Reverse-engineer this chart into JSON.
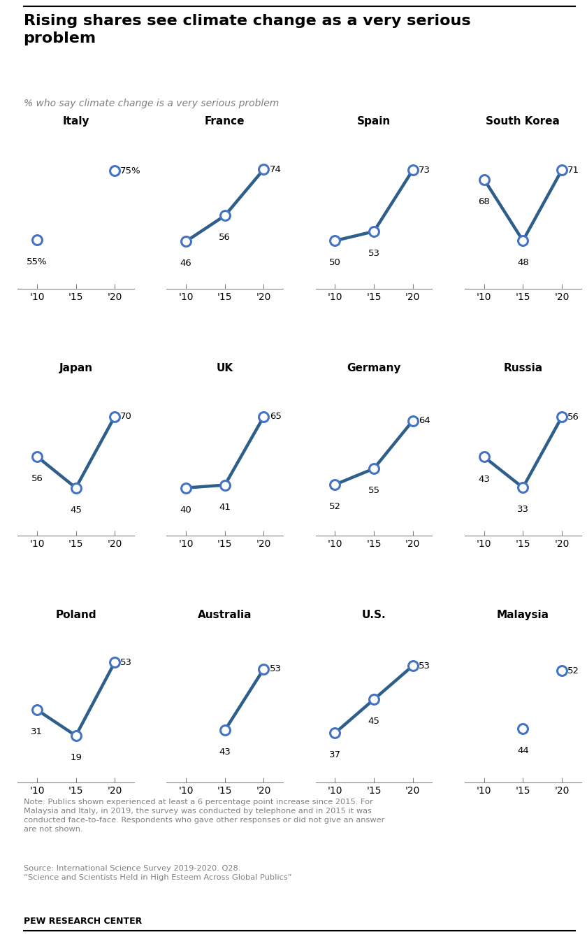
{
  "title": "Rising shares see climate change as a very serious\nproblem",
  "subtitle": "% who say climate change is a very serious problem",
  "note": "Note: Publics shown experienced at least a 6 percentage point increase since 2015. For\nMalaysia and Italy, in 2019, the survey was conducted by telephone and in 2015 it was\nconducted face-to-face. Respondents who gave other responses or did not give an answer\nare not shown.",
  "source": "Source: International Science Survey 2019-2020. Q28.\n“Science and Scientists Held in High Esteem Across Global Publics”",
  "branding": "PEW RESEARCH CENTER",
  "line_color": "#2e5f8a",
  "dot_edgecolor": "#4472c4",
  "text_color": "#808080",
  "countries": [
    {
      "name": "Italy",
      "v10": 55,
      "v15": null,
      "v20": 75,
      "label10": "55%",
      "label15": null,
      "label20": "75%",
      "connected": false
    },
    {
      "name": "France",
      "v10": 46,
      "v15": 56,
      "v20": 74,
      "label10": "46",
      "label15": "56",
      "label20": "74",
      "connected": true
    },
    {
      "name": "Spain",
      "v10": 50,
      "v15": 53,
      "v20": 73,
      "label10": "50",
      "label15": "53",
      "label20": "73",
      "connected": true
    },
    {
      "name": "South Korea",
      "v10": 68,
      "v15": 48,
      "v20": 71,
      "label10": "68",
      "label15": "48",
      "label20": "71",
      "connected": true
    },
    {
      "name": "Japan",
      "v10": 56,
      "v15": 45,
      "v20": 70,
      "label10": "56",
      "label15": "45",
      "label20": "70",
      "connected": true
    },
    {
      "name": "UK",
      "v10": 40,
      "v15": 41,
      "v20": 65,
      "label10": "40",
      "label15": "41",
      "label20": "65",
      "connected": true
    },
    {
      "name": "Germany",
      "v10": 52,
      "v15": 55,
      "v20": 64,
      "label10": "52",
      "label15": "55",
      "label20": "64",
      "connected": true
    },
    {
      "name": "Russia",
      "v10": 43,
      "v15": 33,
      "v20": 56,
      "label10": "43",
      "label15": "33",
      "label20": "56",
      "connected": true
    },
    {
      "name": "Poland",
      "v10": 31,
      "v15": 19,
      "v20": 53,
      "label10": "31",
      "label15": "19",
      "label20": "53",
      "connected": true
    },
    {
      "name": "Australia",
      "v10": null,
      "v15": 43,
      "v20": 53,
      "label10": null,
      "label15": "43",
      "label20": "53",
      "connected": true
    },
    {
      "name": "U.S.",
      "v10": 37,
      "v15": 45,
      "v20": 53,
      "label10": "37",
      "label15": "45",
      "label20": "53",
      "connected": true
    },
    {
      "name": "Malaysia",
      "v10": null,
      "v15": 44,
      "v20": 52,
      "label10": null,
      "label15": "44",
      "label20": "52",
      "connected": false
    }
  ],
  "x_labels": [
    "'10",
    "'15",
    "'20"
  ],
  "x_positions": [
    0,
    1,
    2
  ]
}
